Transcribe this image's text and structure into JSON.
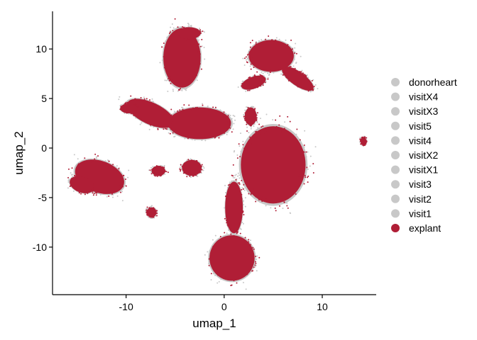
{
  "chart_data": {
    "type": "scatter",
    "title": "",
    "xlabel": "umap_1",
    "ylabel": "umap_2",
    "xlim": [
      -17.5,
      15.5
    ],
    "ylim": [
      -14.8,
      13.8
    ],
    "xticks": [
      -10,
      0,
      10
    ],
    "yticks": [
      10,
      5,
      0,
      -5,
      -10
    ],
    "xtick_labels": [
      "-10",
      "0",
      "10"
    ],
    "ytick_labels": [
      "10",
      "5",
      "0",
      "-5",
      "-10"
    ],
    "grid": false,
    "legend_position": "right",
    "series": [
      {
        "name": "donorheart",
        "color": "#c8c8c8"
      },
      {
        "name": "visitX4",
        "color": "#c8c8c8"
      },
      {
        "name": "visitX3",
        "color": "#c8c8c8"
      },
      {
        "name": "visit5",
        "color": "#c8c8c8"
      },
      {
        "name": "visit4",
        "color": "#c8c8c8"
      },
      {
        "name": "visitX2",
        "color": "#c8c8c8"
      },
      {
        "name": "visitX1",
        "color": "#c8c8c8"
      },
      {
        "name": "visit3",
        "color": "#c8c8c8"
      },
      {
        "name": "visit2",
        "color": "#c8c8c8"
      },
      {
        "name": "visit1",
        "color": "#c8c8c8"
      },
      {
        "name": "explant",
        "color": "#b01e36"
      }
    ],
    "clusters": [
      {
        "cx": -4.3,
        "cy": 9.1,
        "rx": 1.9,
        "ry": 3.0,
        "rot": 0
      },
      {
        "cx": -3.6,
        "cy": 11.6,
        "rx": 1.2,
        "ry": 0.6,
        "rot": 0
      },
      {
        "cx": 4.8,
        "cy": 9.3,
        "rx": 2.3,
        "ry": 1.6,
        "rot": 0
      },
      {
        "cx": 7.5,
        "cy": 7.0,
        "rx": 1.9,
        "ry": 0.7,
        "rot": -35
      },
      {
        "cx": 3.0,
        "cy": 6.6,
        "rx": 1.3,
        "ry": 0.6,
        "rot": 20
      },
      {
        "cx": -7.5,
        "cy": 3.5,
        "rx": 2.6,
        "ry": 1.1,
        "rot": -25
      },
      {
        "cx": -9.7,
        "cy": 4.0,
        "rx": 0.9,
        "ry": 0.5,
        "rot": 0
      },
      {
        "cx": -2.5,
        "cy": 2.5,
        "rx": 3.2,
        "ry": 1.6,
        "rot": 0
      },
      {
        "cx": 2.7,
        "cy": 3.2,
        "rx": 0.6,
        "ry": 0.9,
        "rot": 0
      },
      {
        "cx": 5.0,
        "cy": -1.7,
        "rx": 3.3,
        "ry": 3.9,
        "rot": 0
      },
      {
        "cx": -12.7,
        "cy": -2.9,
        "rx": 2.6,
        "ry": 1.6,
        "rot": -20
      },
      {
        "cx": -14.5,
        "cy": -3.7,
        "rx": 1.3,
        "ry": 0.8,
        "rot": -20
      },
      {
        "cx": -6.7,
        "cy": -2.3,
        "rx": 0.7,
        "ry": 0.5,
        "rot": 0
      },
      {
        "cx": -3.3,
        "cy": -2.0,
        "rx": 1.0,
        "ry": 0.8,
        "rot": 0
      },
      {
        "cx": -7.4,
        "cy": -6.5,
        "rx": 0.5,
        "ry": 0.5,
        "rot": 0
      },
      {
        "cx": 0.8,
        "cy": -11.1,
        "rx": 2.3,
        "ry": 2.3,
        "rot": 0
      },
      {
        "cx": 1.0,
        "cy": -6.0,
        "rx": 0.9,
        "ry": 2.6,
        "rot": 0
      },
      {
        "cx": 14.2,
        "cy": 0.7,
        "rx": 0.3,
        "ry": 0.4,
        "rot": 0
      }
    ]
  }
}
